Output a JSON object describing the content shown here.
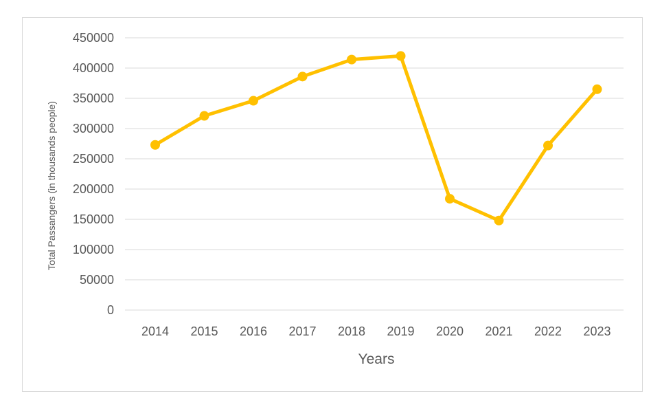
{
  "chart_data": {
    "type": "line",
    "title": "",
    "xlabel": "Years",
    "ylabel": "Total Passangers (in thousands people)",
    "categories": [
      "2014",
      "2015",
      "2016",
      "2017",
      "2018",
      "2019",
      "2020",
      "2021",
      "2022",
      "2023"
    ],
    "series": [
      {
        "values": [
          273000,
          321000,
          346000,
          386000,
          414000,
          420000,
          184000,
          148000,
          272000,
          365000
        ]
      }
    ],
    "ylim": [
      0,
      450000
    ],
    "yticks": [
      0,
      50000,
      100000,
      150000,
      200000,
      250000,
      300000,
      350000,
      400000,
      450000
    ],
    "ytick_labels": [
      "0",
      "50000",
      "100000",
      "150000",
      "200000",
      "250000",
      "300000",
      "350000",
      "400000",
      "450000"
    ],
    "grid": true,
    "legend": "none",
    "line_color": "#FFC000",
    "grid_color": "#d9d9d9",
    "text_color": "#595959"
  }
}
